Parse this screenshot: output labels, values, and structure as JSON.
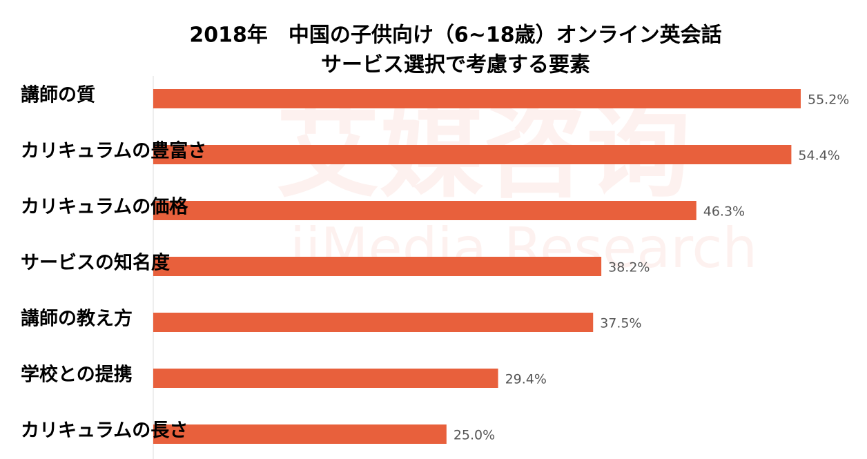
{
  "chart_data": {
    "type": "bar",
    "orientation": "horizontal",
    "title": [
      "2018年　中国の子供向け（6~18歳）オンライン英会話",
      "サービス選択で考慮する要素"
    ],
    "categories": [
      "講師の質",
      "カリキュラムの豊富さ",
      "カリキュラムの価格",
      "サービスの知名度",
      "講師の教え方",
      "学校との提携",
      "カリキュラムの長さ"
    ],
    "values": [
      55.2,
      54.4,
      46.3,
      38.2,
      37.5,
      29.4,
      25.0
    ],
    "value_labels": [
      "55.2%",
      "54.4%",
      "46.3%",
      "38.2%",
      "37.5%",
      "29.4%",
      "25.0%"
    ],
    "color": "#e8603c",
    "watermark": [
      "艾媒咨询",
      "iiMedia Research"
    ]
  }
}
